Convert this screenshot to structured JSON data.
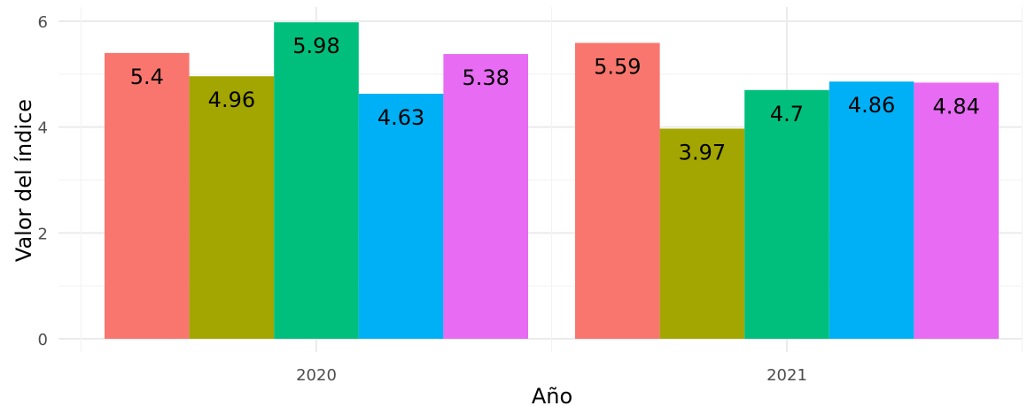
{
  "chart_data": {
    "type": "bar",
    "title": "",
    "xlabel": "Año",
    "ylabel": "Valor del índice",
    "categories": [
      "2020",
      "2021"
    ],
    "ylim": [
      0,
      6
    ],
    "y_ticks": [
      "0",
      "2",
      "4",
      "6"
    ],
    "grid": true,
    "legend": "none",
    "colors": [
      "#F8766D",
      "#A3A500",
      "#00BF7D",
      "#00B0F6",
      "#E76BF3"
    ],
    "series": [
      {
        "values": [
          5.4,
          5.59
        ],
        "labels": [
          "5.4",
          "5.59"
        ]
      },
      {
        "values": [
          4.96,
          3.97
        ],
        "labels": [
          "4.96",
          "3.97"
        ]
      },
      {
        "values": [
          5.98,
          4.7
        ],
        "labels": [
          "5.98",
          "4.7"
        ]
      },
      {
        "values": [
          4.63,
          4.86
        ],
        "labels": [
          "4.63",
          "4.86"
        ]
      },
      {
        "values": [
          5.38,
          4.84
        ],
        "labels": [
          "5.38",
          "4.84"
        ]
      }
    ]
  }
}
